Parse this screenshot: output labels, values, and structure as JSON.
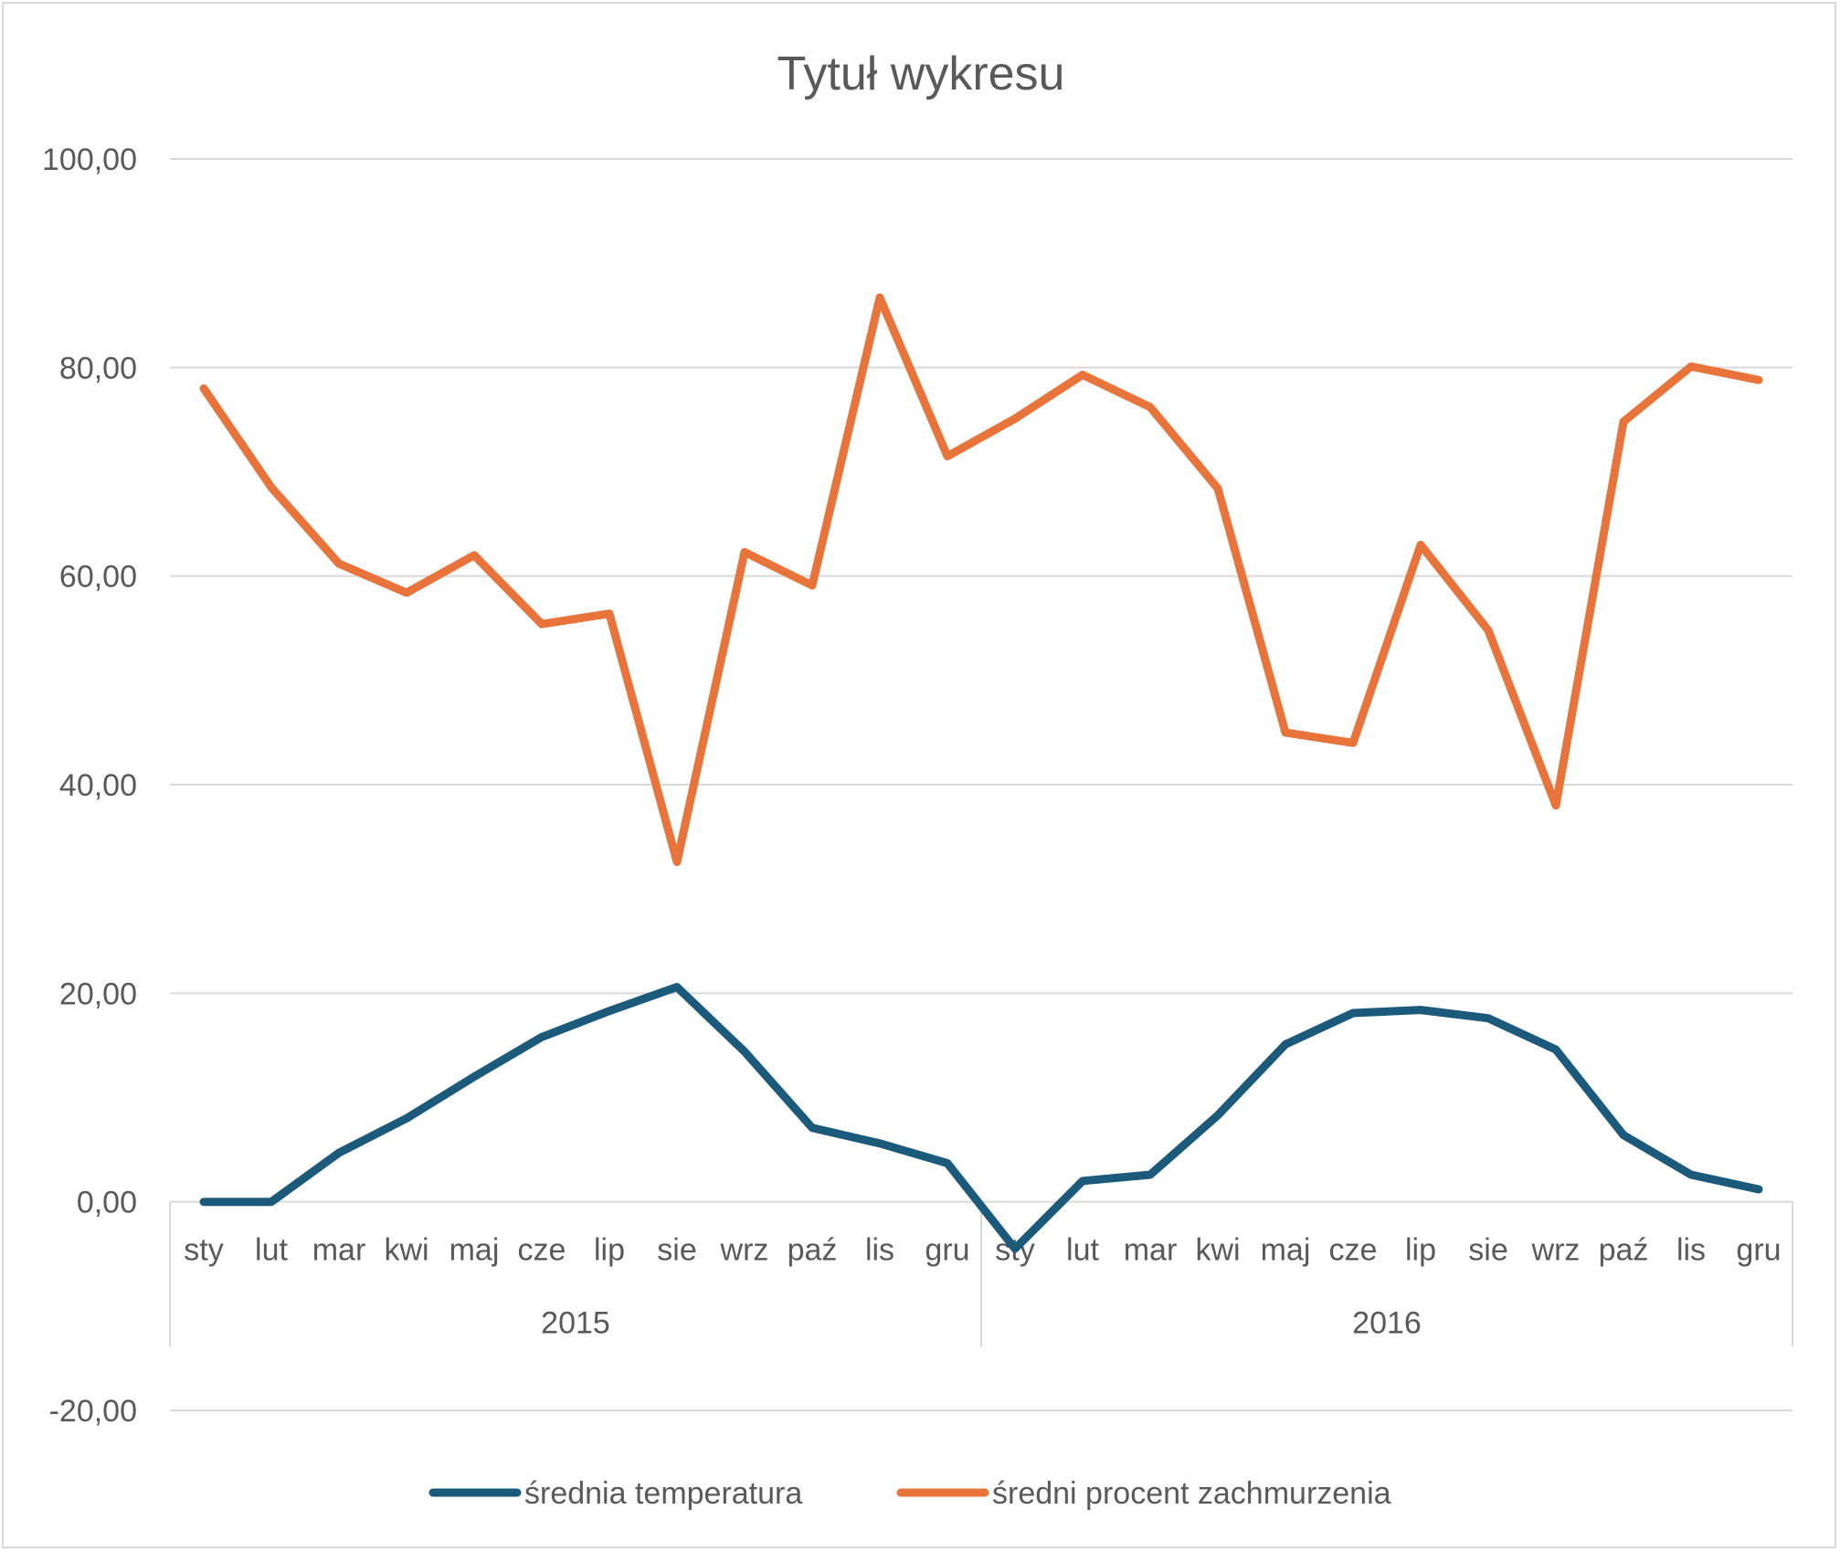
{
  "chart_data": {
    "type": "line",
    "title": "Tytuł wykresu",
    "xlabel": "",
    "ylabel": "",
    "ylim": [
      -20,
      100
    ],
    "y_ticks": [
      -20,
      0,
      20,
      40,
      60,
      80,
      100
    ],
    "y_tick_labels": [
      "-20,00",
      "0,00",
      "20,00",
      "40,00",
      "60,00",
      "80,00",
      "100,00"
    ],
    "grid": true,
    "legend_position": "bottom",
    "groups": [
      {
        "label": "2015",
        "categories": [
          "sty",
          "lut",
          "mar",
          "kwi",
          "maj",
          "cze",
          "lip",
          "sie",
          "wrz",
          "paź",
          "lis",
          "gru"
        ]
      },
      {
        "label": "2016",
        "categories": [
          "sty",
          "lut",
          "mar",
          "kwi",
          "maj",
          "cze",
          "lip",
          "sie",
          "wrz",
          "paź",
          "lis",
          "gru"
        ]
      }
    ],
    "series": [
      {
        "name": "średnia temperatura",
        "color": "#1b5a7a",
        "values": [
          0.0,
          0.0,
          4.7,
          8.0,
          12.0,
          15.8,
          18.3,
          20.6,
          14.4,
          7.1,
          5.6,
          3.7,
          -4.5,
          2.0,
          2.6,
          8.3,
          15.1,
          18.1,
          18.4,
          17.6,
          14.6,
          6.4,
          2.6,
          1.2
        ]
      },
      {
        "name": "średni procent zachmurzenia",
        "color": "#e8743b",
        "values": [
          78.0,
          68.5,
          61.2,
          58.4,
          62.0,
          55.4,
          56.4,
          32.6,
          62.3,
          59.1,
          86.7,
          71.5,
          75.1,
          79.3,
          76.2,
          68.4,
          45.0,
          44.0,
          63.0,
          54.8,
          38.0,
          74.8,
          80.1,
          78.8
        ]
      }
    ]
  }
}
